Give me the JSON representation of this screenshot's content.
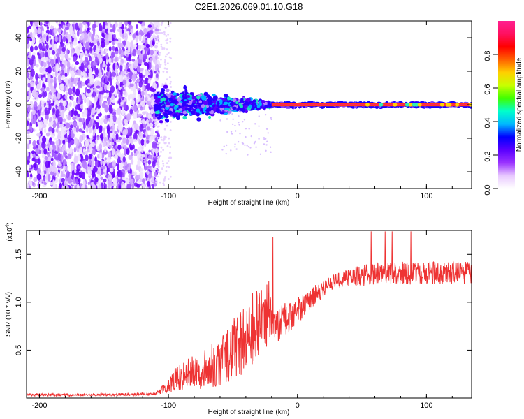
{
  "title": "C2E1.2026.069.01.10.G18",
  "chart_data": [
    {
      "type": "heatmap",
      "name": "spectrogram",
      "xlabel": "Height of straight line (km)",
      "ylabel": "Frequency (Hz)",
      "xlim": [
        -210,
        135
      ],
      "ylim": [
        -50,
        50
      ],
      "x_ticks": [
        -200,
        -100,
        0,
        100
      ],
      "x_tick_labels": [
        "-200",
        "-100",
        "0",
        "100"
      ],
      "y_ticks": [
        -40,
        -20,
        0,
        20,
        40
      ],
      "y_tick_labels": [
        "-40",
        "-20",
        "0",
        "20",
        "40"
      ],
      "noise_region_km": [
        -210,
        -108
      ],
      "signal_line_hz": 0,
      "transition_region_km": [
        -110,
        -20
      ],
      "clean_tone_region_km": [
        -20,
        135
      ],
      "colorbar": {
        "label": "Normalized spectral amplitude",
        "range": [
          0,
          1
        ],
        "ticks": [
          0.0,
          0.2,
          0.4,
          0.6,
          0.8
        ],
        "tick_labels": [
          "0.0",
          "0.2",
          "0.4",
          "0.6",
          "0.8"
        ],
        "colors": [
          "#ffffff",
          "#e8c8ff",
          "#9a32ff",
          "#5a00ff",
          "#0000ff",
          "#00b8ff",
          "#00ffcc",
          "#40ff00",
          "#c8ff00",
          "#ffd000",
          "#ff6000",
          "#ff0000",
          "#ff1060",
          "#ff2090"
        ]
      }
    },
    {
      "type": "line",
      "name": "snr",
      "xlabel": "Height of straight line (km)",
      "ylabel": "SNR (10 * v/v)",
      "y_multiplier": "(x10",
      "y_multiplier_exp": "4",
      "y_multiplier_close": ")",
      "xlim": [
        -210,
        135
      ],
      "ylim": [
        0,
        17500
      ],
      "x_ticks": [
        -200,
        -100,
        0,
        100
      ],
      "x_tick_labels": [
        "-200",
        "-100",
        "0",
        "100"
      ],
      "y_ticks": [
        5000,
        10000,
        15000
      ],
      "y_tick_labels": [
        "0.5",
        "1.0",
        "1.5"
      ],
      "color": "#ee3333",
      "series": [
        {
          "name": "SNR",
          "x": [
            -210,
            -190,
            -170,
            -150,
            -130,
            -110,
            -100,
            -95,
            -90,
            -85,
            -80,
            -75,
            -70,
            -65,
            -60,
            -55,
            -50,
            -45,
            -40,
            -35,
            -30,
            -25,
            -22,
            -20,
            -18,
            -15,
            -10,
            -5,
            0,
            5,
            10,
            15,
            20,
            25,
            30,
            35,
            40,
            45,
            50,
            55,
            60,
            65,
            70,
            80,
            90,
            100,
            110,
            120,
            130,
            135
          ],
          "y": [
            350,
            320,
            330,
            350,
            380,
            420,
            1300,
            1900,
            2200,
            2500,
            2700,
            2900,
            3200,
            3500,
            3900,
            4400,
            5100,
            5700,
            6300,
            7000,
            7600,
            8300,
            8800,
            7500,
            7300,
            7400,
            8200,
            8600,
            9100,
            9700,
            10300,
            10900,
            11400,
            11900,
            12200,
            12400,
            12600,
            12700,
            12800,
            12900,
            13000,
            13000,
            13000,
            13100,
            13000,
            13100,
            13000,
            13100,
            13100,
            13000
          ],
          "noise_amplitude": [
            150,
            120,
            120,
            130,
            130,
            160,
            700,
            1200,
            1400,
            1600,
            1800,
            2000,
            2200,
            2400,
            2600,
            2800,
            3200,
            3600,
            3900,
            4000,
            3800,
            3400,
            3600,
            1800,
            1600,
            1800,
            1900,
            1700,
            1400,
            1200,
            1100,
            1000,
            900,
            800,
            800,
            800,
            900,
            1000,
            1100,
            1100,
            1200,
            1200,
            1200,
            1200,
            1200,
            1200,
            1200,
            1200,
            1200,
            1200
          ]
        }
      ]
    }
  ]
}
